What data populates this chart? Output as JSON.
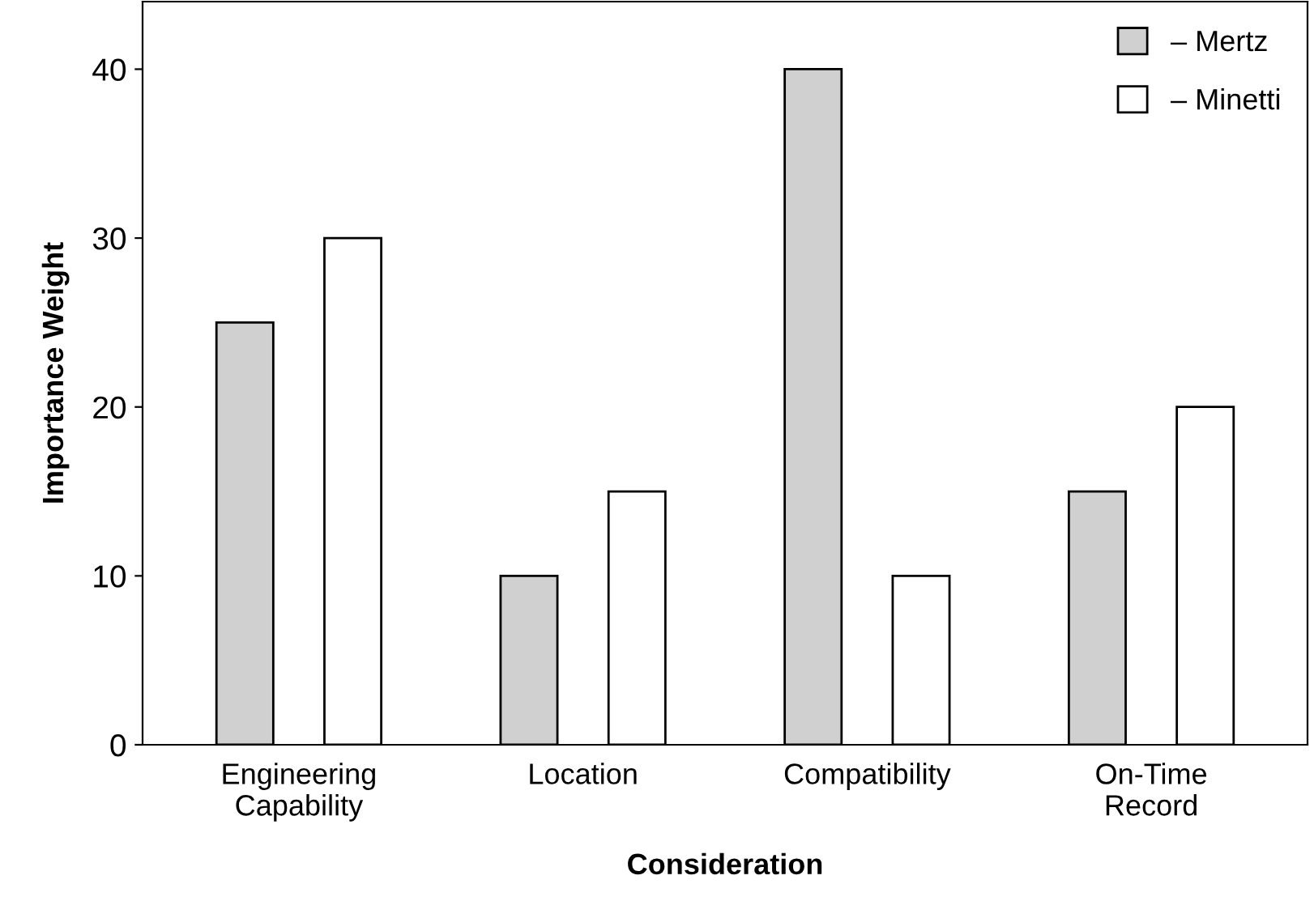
{
  "chart_data": {
    "type": "bar",
    "xlabel": "Consideration",
    "ylabel": "Importance Weight",
    "categories": [
      "Engineering\nCapability",
      "Location",
      "Compatibility",
      "On-Time\nRecord"
    ],
    "series": [
      {
        "name": "– Mertz",
        "color": "#d0d0d0",
        "values": [
          25,
          10,
          40,
          15
        ]
      },
      {
        "name": "– Minetti",
        "color": "#ffffff",
        "values": [
          30,
          15,
          10,
          20
        ]
      }
    ],
    "ylim": [
      0,
      44
    ],
    "yticks": [
      0,
      10,
      20,
      30,
      40
    ],
    "grid": false,
    "legend": "top right"
  }
}
